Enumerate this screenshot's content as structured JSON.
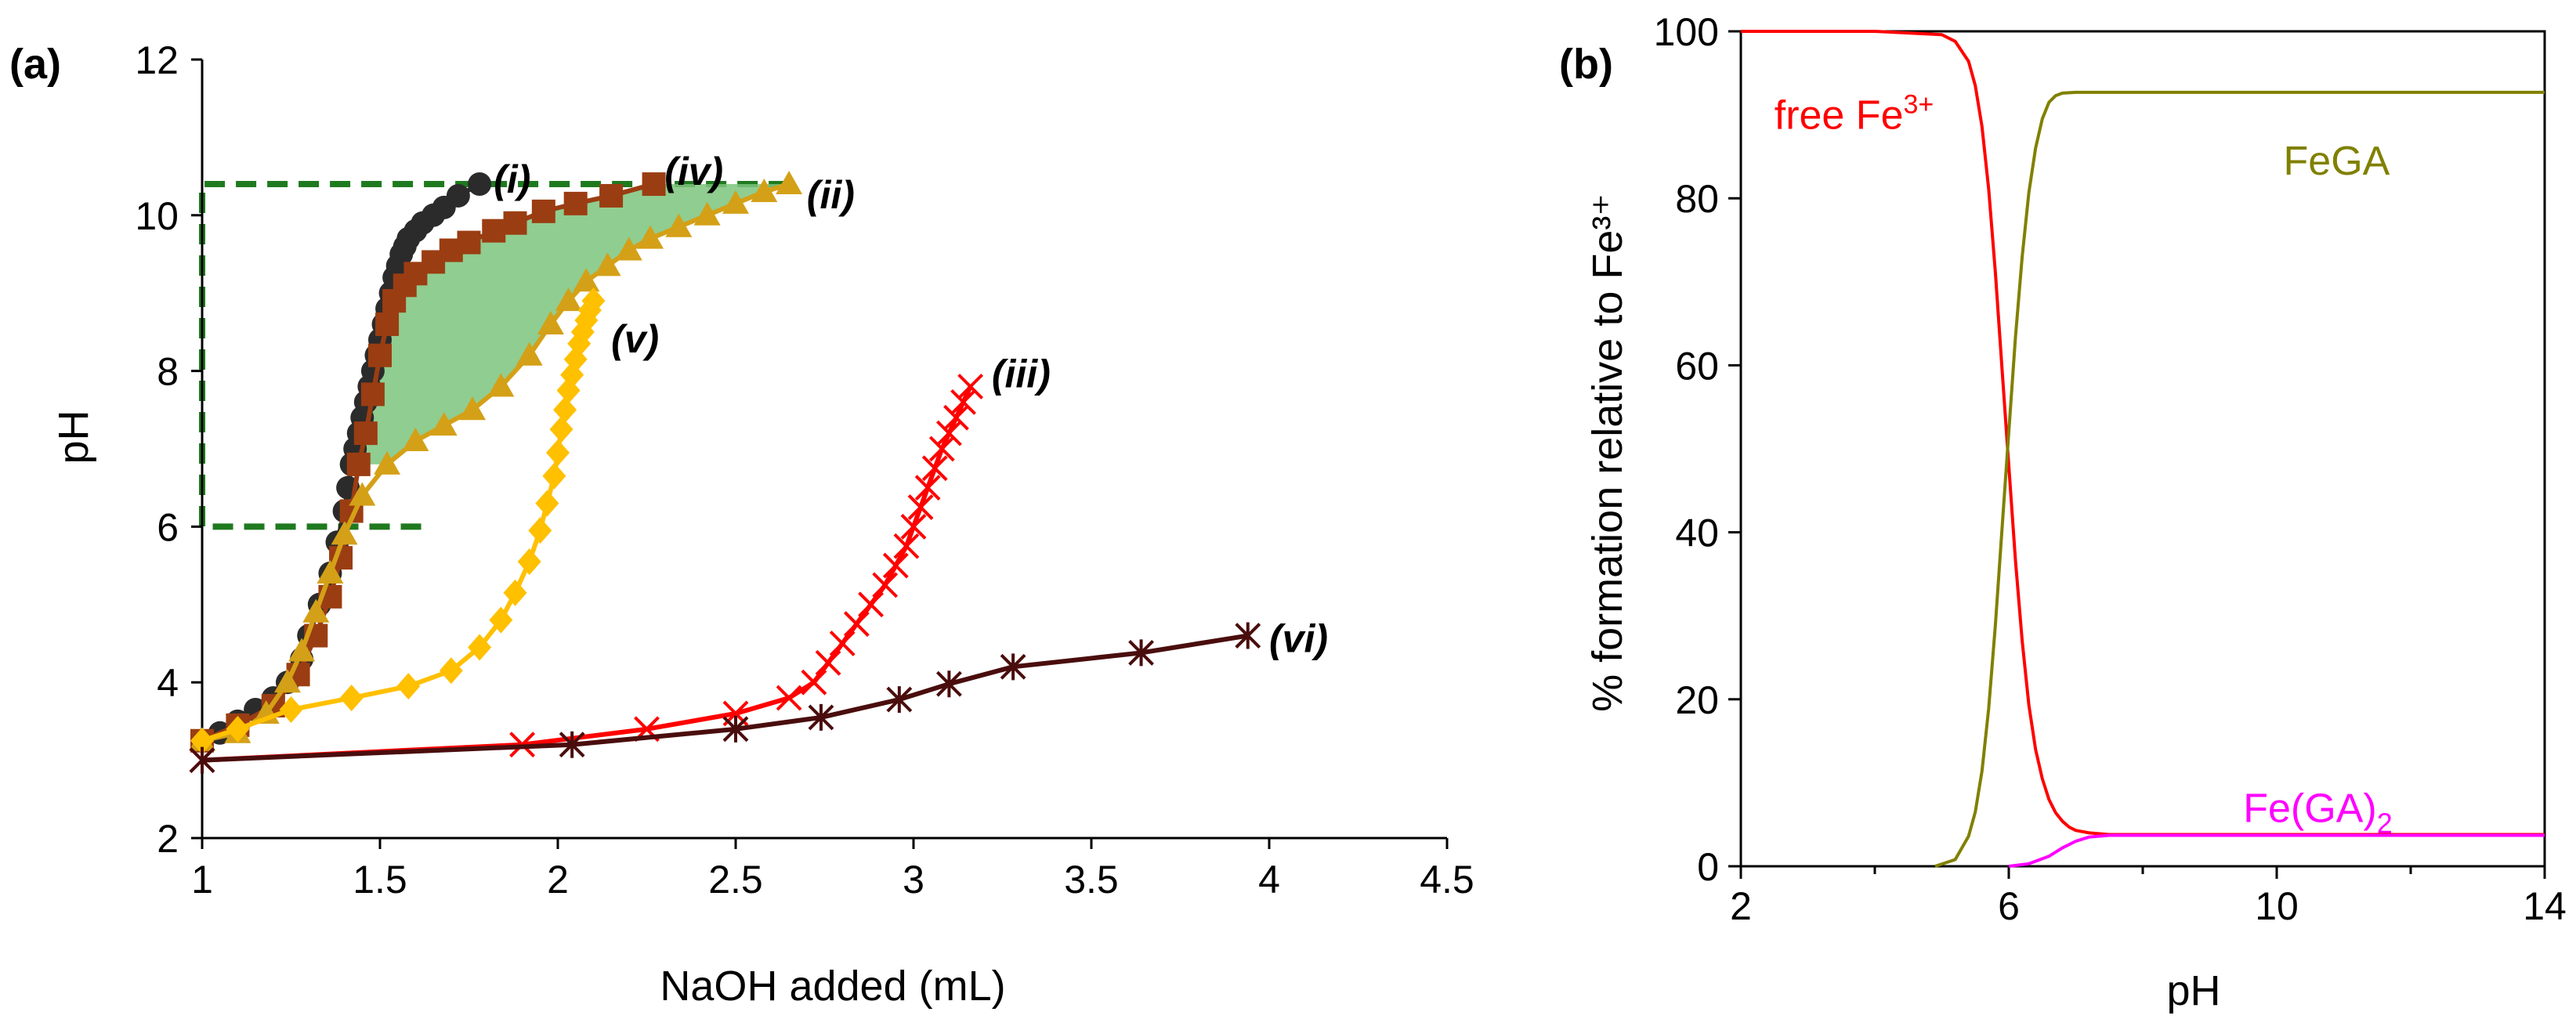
{
  "chart_data": [
    {
      "type": "line",
      "panel_label": "(a)",
      "xlabel": "NaOH added (mL)",
      "ylabel": "pH",
      "xlim": [
        1,
        4.5
      ],
      "ylim": [
        2,
        12
      ],
      "xticks": [
        1,
        1.5,
        2,
        2.5,
        3,
        3.5,
        4,
        4.5
      ],
      "xtick_labels": [
        "1",
        "1.5",
        "2",
        "2.5",
        "3",
        "3.5",
        "4",
        "4.5"
      ],
      "yticks": [
        2,
        4,
        6,
        8,
        10,
        12
      ],
      "ytick_labels": [
        "2",
        "4",
        "6",
        "8",
        "10",
        "12"
      ],
      "highlight_box": {
        "x_from": 1,
        "x_to": 2.65,
        "y_from": 6,
        "y_to": 10.4,
        "style": "dashed",
        "color": "#1f7a1f"
      },
      "shaded_region": {
        "between": [
          "(iv)",
          "(ii)"
        ],
        "y_from": 6.8,
        "y_to": 10.4,
        "color": "#7cc47c"
      },
      "series": [
        {
          "name": "(i)",
          "label": "(i)",
          "marker": "circle",
          "color": "#2b2b2b",
          "x": [
            1.0,
            1.05,
            1.1,
            1.15,
            1.2,
            1.24,
            1.28,
            1.3,
            1.33,
            1.36,
            1.38,
            1.4,
            1.41,
            1.42,
            1.43,
            1.44,
            1.45,
            1.46,
            1.47,
            1.48,
            1.49,
            1.5,
            1.51,
            1.52,
            1.53,
            1.54,
            1.55,
            1.56,
            1.57,
            1.58,
            1.6,
            1.62,
            1.65,
            1.68,
            1.72,
            1.78
          ],
          "y": [
            3.25,
            3.35,
            3.5,
            3.65,
            3.8,
            4.0,
            4.3,
            4.6,
            5.0,
            5.4,
            5.8,
            6.2,
            6.5,
            6.8,
            7.0,
            7.2,
            7.4,
            7.6,
            7.8,
            8.0,
            8.2,
            8.4,
            8.6,
            8.8,
            9.0,
            9.2,
            9.35,
            9.5,
            9.6,
            9.7,
            9.8,
            9.9,
            10.0,
            10.1,
            10.25,
            10.4
          ],
          "label_pos": [
            1.82,
            10.45
          ]
        },
        {
          "name": "(iv)",
          "label": "(iv)",
          "marker": "square",
          "color": "#9b3d12",
          "x": [
            1.0,
            1.1,
            1.2,
            1.27,
            1.32,
            1.36,
            1.39,
            1.42,
            1.44,
            1.46,
            1.48,
            1.5,
            1.52,
            1.54,
            1.57,
            1.6,
            1.65,
            1.7,
            1.75,
            1.82,
            1.88,
            1.96,
            2.05,
            2.15,
            2.27
          ],
          "y": [
            3.25,
            3.45,
            3.7,
            4.1,
            4.6,
            5.1,
            5.6,
            6.2,
            6.8,
            7.2,
            7.7,
            8.2,
            8.6,
            8.9,
            9.1,
            9.25,
            9.4,
            9.55,
            9.65,
            9.8,
            9.9,
            10.05,
            10.15,
            10.25,
            10.4
          ],
          "label_pos": [
            2.3,
            10.55
          ]
        },
        {
          "name": "(ii)",
          "label": "(ii)",
          "marker": "triangle",
          "color": "#d4a017",
          "x": [
            1.0,
            1.1,
            1.18,
            1.24,
            1.28,
            1.32,
            1.36,
            1.4,
            1.45,
            1.52,
            1.6,
            1.68,
            1.76,
            1.84,
            1.92,
            1.98,
            2.03,
            2.08,
            2.14,
            2.2,
            2.26,
            2.34,
            2.42,
            2.5,
            2.58,
            2.65
          ],
          "y": [
            3.25,
            3.35,
            3.6,
            4.0,
            4.4,
            4.9,
            5.4,
            5.9,
            6.4,
            6.8,
            7.1,
            7.3,
            7.5,
            7.8,
            8.2,
            8.6,
            8.9,
            9.15,
            9.35,
            9.55,
            9.7,
            9.85,
            10.0,
            10.15,
            10.3,
            10.4
          ],
          "label_pos": [
            2.7,
            10.25
          ]
        },
        {
          "name": "(v)",
          "label": "(v)",
          "marker": "diamond",
          "color": "#ffc000",
          "x": [
            1.0,
            1.1,
            1.25,
            1.42,
            1.58,
            1.7,
            1.78,
            1.84,
            1.88,
            1.92,
            1.95,
            1.97,
            1.99,
            2.0,
            2.01,
            2.02,
            2.03,
            2.04,
            2.05,
            2.06,
            2.07,
            2.08,
            2.09,
            2.1
          ],
          "y": [
            3.25,
            3.4,
            3.65,
            3.8,
            3.95,
            4.15,
            4.45,
            4.8,
            5.15,
            5.55,
            5.95,
            6.3,
            6.65,
            6.95,
            7.25,
            7.5,
            7.75,
            7.95,
            8.15,
            8.35,
            8.5,
            8.65,
            8.78,
            8.9
          ],
          "label_pos": [
            2.15,
            8.4
          ]
        },
        {
          "name": "(iii)",
          "label": "(iii)",
          "marker": "x",
          "color": "#ff0000",
          "x": [
            1.0,
            1.9,
            2.25,
            2.5,
            2.65,
            2.72,
            2.76,
            2.8,
            2.84,
            2.88,
            2.92,
            2.95,
            2.98,
            3.0,
            3.02,
            3.04,
            3.06,
            3.08,
            3.1,
            3.12,
            3.14,
            3.16
          ],
          "y": [
            3.0,
            3.2,
            3.4,
            3.6,
            3.8,
            4.0,
            4.25,
            4.5,
            4.75,
            5.0,
            5.25,
            5.5,
            5.75,
            6.0,
            6.25,
            6.5,
            6.75,
            7.0,
            7.2,
            7.4,
            7.6,
            7.8
          ],
          "label_pos": [
            3.22,
            7.95
          ]
        },
        {
          "name": "(vi)",
          "label": "(vi)",
          "marker": "asterisk",
          "color": "#4a0d0d",
          "x": [
            1.0,
            2.04,
            2.5,
            2.74,
            2.96,
            3.1,
            3.28,
            3.64,
            3.94
          ],
          "y": [
            3.0,
            3.2,
            3.4,
            3.55,
            3.78,
            3.98,
            4.2,
            4.38,
            4.6
          ],
          "label_pos": [
            4.0,
            4.55
          ]
        }
      ]
    },
    {
      "type": "line",
      "panel_label": "(b)",
      "xlabel": "pH",
      "ylabel": "% formation relative to Fe³⁺",
      "xlim": [
        2,
        14
      ],
      "ylim": [
        0,
        100
      ],
      "xticks": [
        2,
        6,
        10,
        14
      ],
      "xtick_labels": [
        "2",
        "6",
        "10",
        "14"
      ],
      "xminor": [
        4,
        8,
        12
      ],
      "yticks": [
        0,
        20,
        40,
        60,
        80,
        100
      ],
      "ytick_labels": [
        "0",
        "20",
        "40",
        "60",
        "80",
        "100"
      ],
      "series": [
        {
          "name": "free Fe3+",
          "label_main": "free Fe",
          "label_sup": "3+",
          "color": "#ff0000",
          "x": [
            2,
            4,
            5,
            5.2,
            5.4,
            5.5,
            5.6,
            5.7,
            5.8,
            5.9,
            6.0,
            6.1,
            6.2,
            6.3,
            6.4,
            6.5,
            6.6,
            6.7,
            6.8,
            6.9,
            7.0,
            7.2,
            7.5,
            8,
            10,
            14
          ],
          "y": [
            100,
            100,
            99.6,
            98.8,
            96.4,
            93.5,
            88.6,
            81.1,
            71.1,
            59.5,
            48,
            36.6,
            27,
            19.3,
            14,
            10.5,
            8,
            6.4,
            5.4,
            4.7,
            4.3,
            4,
            3.8,
            3.8,
            3.8,
            3.8
          ],
          "label_pos": [
            2.5,
            90
          ]
        },
        {
          "name": "FeGA",
          "label_main": "FeGA",
          "label_sup": "",
          "color": "#808000",
          "x": [
            4.9,
            5.2,
            5.4,
            5.5,
            5.6,
            5.7,
            5.8,
            5.9,
            6.0,
            6.1,
            6.2,
            6.3,
            6.4,
            6.5,
            6.6,
            6.7,
            6.8,
            7.0,
            7.5,
            8,
            10,
            14
          ],
          "y": [
            0,
            0.8,
            3.6,
            6.5,
            11.4,
            18.9,
            28.9,
            40.5,
            52,
            63.4,
            73,
            80.7,
            86,
            89.5,
            91.5,
            92.3,
            92.6,
            92.7,
            92.7,
            92.7,
            92.7,
            92.7
          ],
          "label_pos": [
            10.1,
            84.5
          ]
        },
        {
          "name": "Fe(GA)2",
          "label_main": "Fe(GA)",
          "label_sub": "2",
          "color": "#ff00ff",
          "x": [
            6.0,
            6.3,
            6.6,
            6.8,
            7.0,
            7.2,
            7.5,
            8,
            10,
            14
          ],
          "y": [
            0,
            0.3,
            1.2,
            2.2,
            3.0,
            3.5,
            3.7,
            3.7,
            3.7,
            3.7
          ],
          "label_pos": [
            9.5,
            7
          ]
        }
      ]
    }
  ]
}
